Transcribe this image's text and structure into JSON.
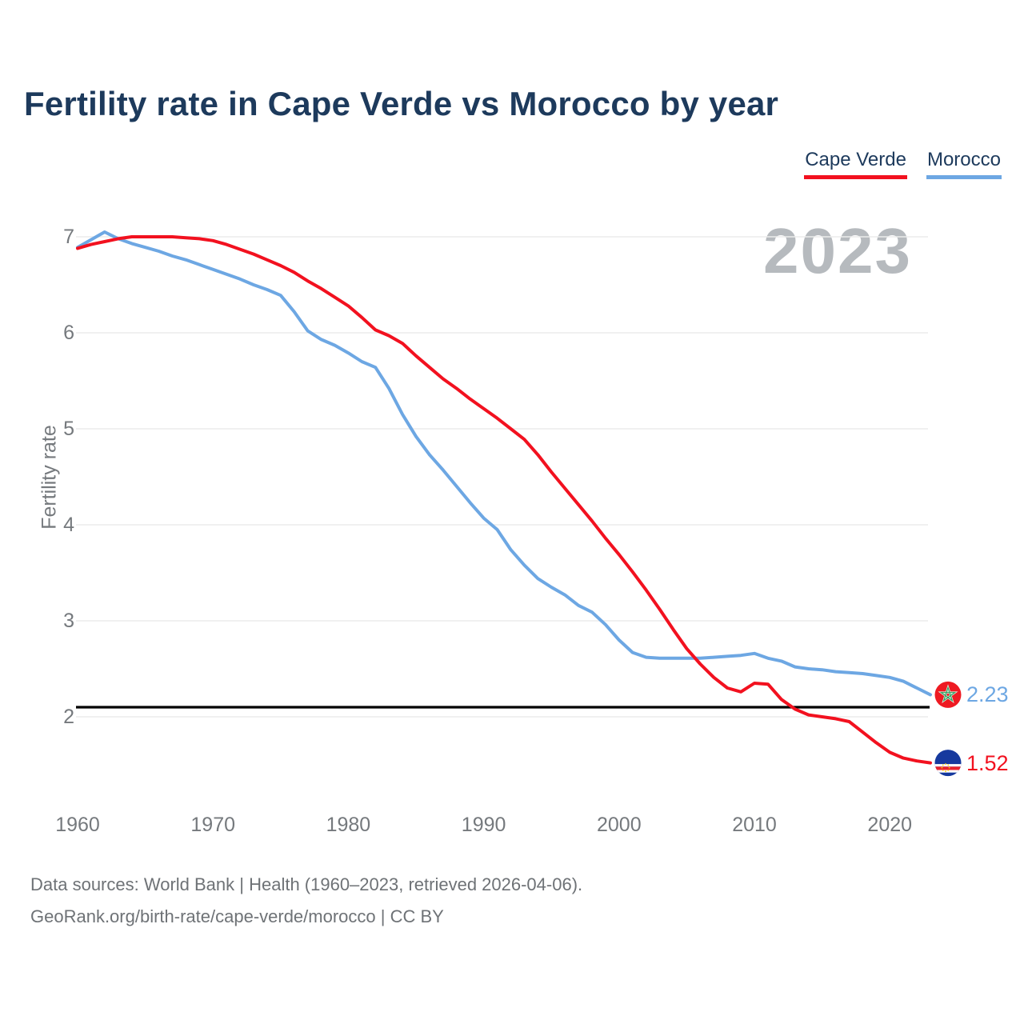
{
  "title": "Fertility rate in Cape Verde vs Morocco by year",
  "watermark": "2023",
  "legend": [
    {
      "label": "Cape Verde",
      "color": "#f2111f"
    },
    {
      "label": "Morocco",
      "color": "#6da7e3"
    }
  ],
  "footer": {
    "line1": "Data sources: World Bank | Health (1960–2023, retrieved 2026-04-06).",
    "line2": "GeoRank.org/birth-rate/cape-verde/morocco | CC BY"
  },
  "chart_data": {
    "type": "line",
    "title": "Fertility rate in Cape Verde vs Morocco by year",
    "xlabel": "",
    "ylabel": "Fertility rate",
    "x_ticks": [
      1960,
      1970,
      1980,
      1990,
      2000,
      2010,
      2020
    ],
    "y_ticks": [
      2,
      3,
      4,
      5,
      6,
      7
    ],
    "xlim": [
      1960,
      2023
    ],
    "ylim": [
      2,
      7
    ],
    "grid": "horizontal",
    "legend_position": "top-right",
    "reference_line": {
      "value": 2.1,
      "color": "#000000"
    },
    "years": [
      1960,
      1961,
      1962,
      1963,
      1964,
      1965,
      1966,
      1967,
      1968,
      1969,
      1970,
      1971,
      1972,
      1973,
      1974,
      1975,
      1976,
      1977,
      1978,
      1979,
      1980,
      1981,
      1982,
      1983,
      1984,
      1985,
      1986,
      1987,
      1988,
      1989,
      1990,
      1991,
      1992,
      1993,
      1994,
      1995,
      1996,
      1997,
      1998,
      1999,
      2000,
      2001,
      2002,
      2003,
      2004,
      2005,
      2006,
      2007,
      2008,
      2009,
      2010,
      2011,
      2012,
      2013,
      2014,
      2015,
      2016,
      2017,
      2018,
      2019,
      2020,
      2021,
      2022,
      2023
    ],
    "series": [
      {
        "name": "Morocco",
        "color": "#6da7e3",
        "end_label": "2.23",
        "flag": "morocco",
        "values": [
          6.89,
          6.97,
          7.05,
          6.98,
          6.93,
          6.89,
          6.85,
          6.8,
          6.76,
          6.71,
          6.66,
          6.61,
          6.56,
          6.5,
          6.45,
          6.39,
          6.22,
          6.02,
          5.93,
          5.87,
          5.79,
          5.7,
          5.64,
          5.42,
          5.15,
          4.92,
          4.73,
          4.57,
          4.4,
          4.23,
          4.07,
          3.95,
          3.74,
          3.58,
          3.44,
          3.35,
          3.27,
          3.16,
          3.09,
          2.96,
          2.8,
          2.67,
          2.62,
          2.61,
          2.61,
          2.61,
          2.61,
          2.62,
          2.63,
          2.64,
          2.66,
          2.61,
          2.58,
          2.52,
          2.5,
          2.49,
          2.47,
          2.46,
          2.45,
          2.43,
          2.41,
          2.37,
          2.3,
          2.23
        ]
      },
      {
        "name": "Cape Verde",
        "color": "#f2111f",
        "end_label": "1.52",
        "flag": "cape-verde",
        "values": [
          6.88,
          6.92,
          6.95,
          6.98,
          7.0,
          7.0,
          7.0,
          7.0,
          6.99,
          6.98,
          6.96,
          6.92,
          6.87,
          6.82,
          6.76,
          6.7,
          6.63,
          6.54,
          6.46,
          6.37,
          6.28,
          6.16,
          6.03,
          5.97,
          5.89,
          5.76,
          5.64,
          5.52,
          5.42,
          5.31,
          5.21,
          5.11,
          5.0,
          4.89,
          4.73,
          4.55,
          4.38,
          4.21,
          4.04,
          3.86,
          3.69,
          3.51,
          3.32,
          3.12,
          2.91,
          2.71,
          2.55,
          2.41,
          2.3,
          2.26,
          2.35,
          2.34,
          2.18,
          2.08,
          2.02,
          2.0,
          1.98,
          1.95,
          1.84,
          1.73,
          1.63,
          1.57,
          1.54,
          1.52
        ]
      }
    ]
  }
}
